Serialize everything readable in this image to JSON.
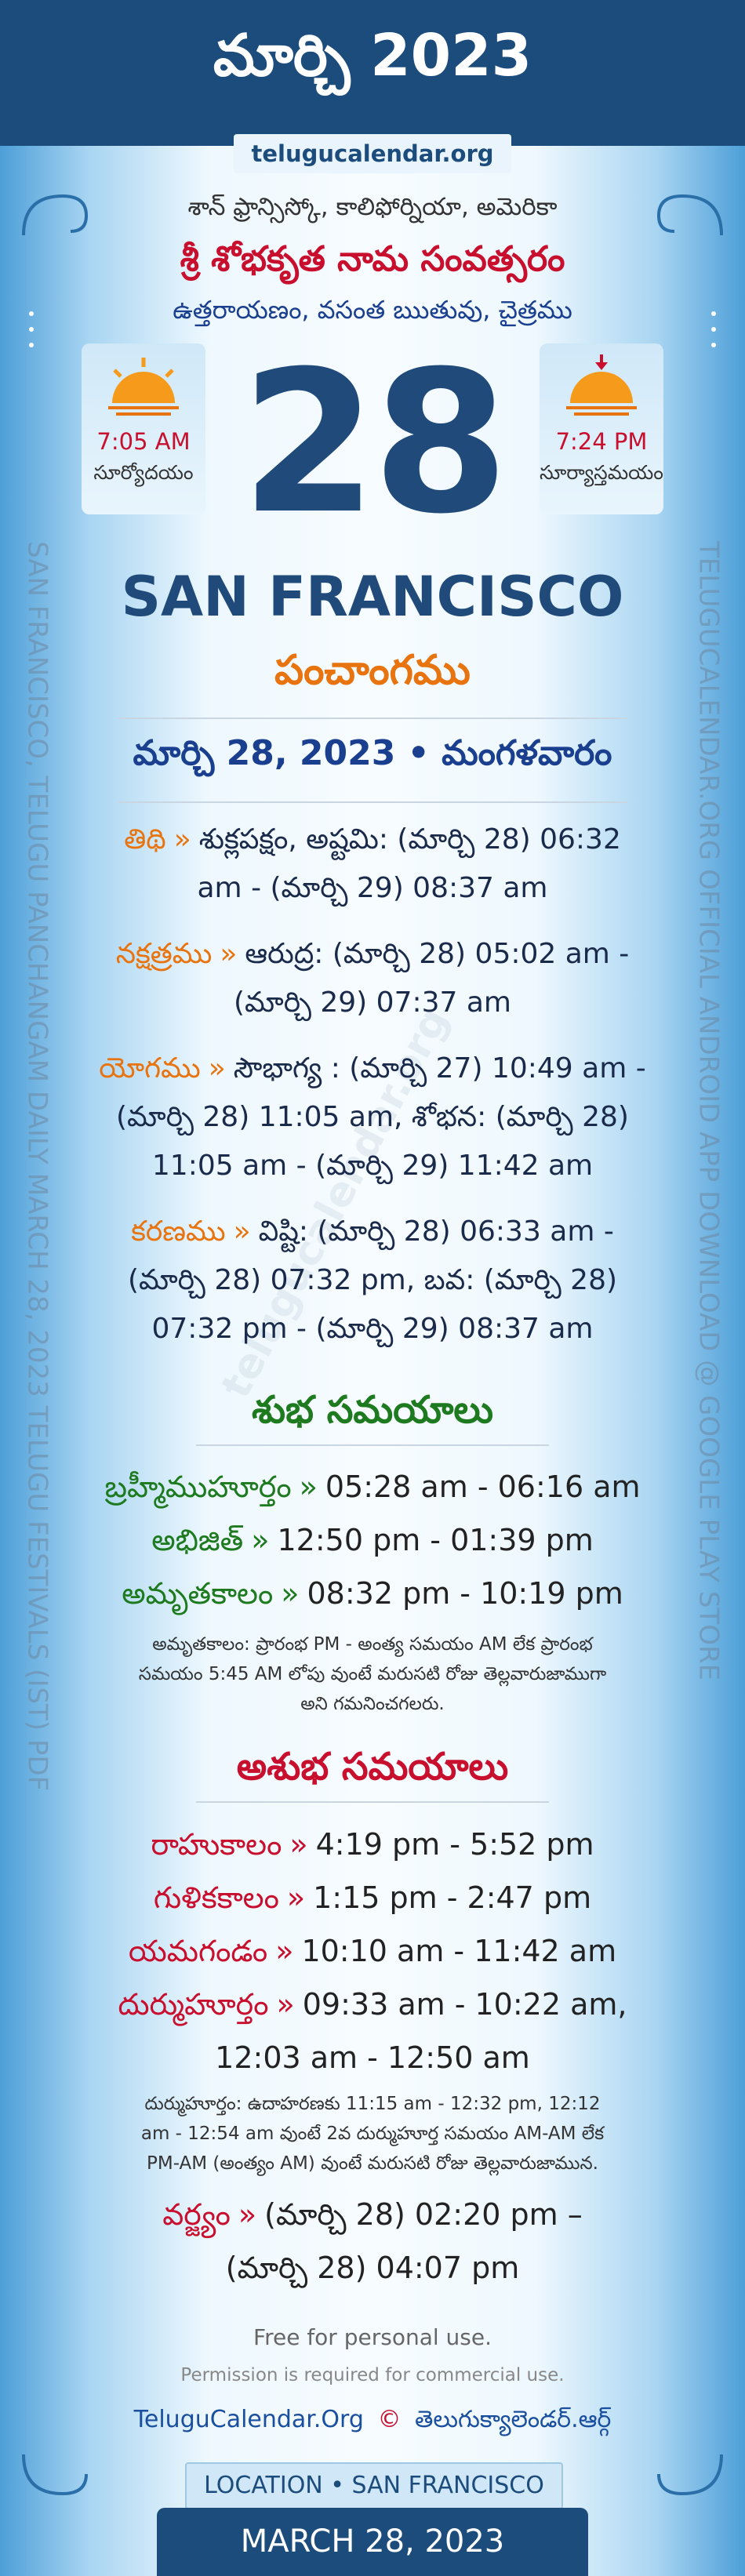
{
  "header": {
    "title": "మార్చి 2023",
    "site": "telugucalendar.org"
  },
  "location_line": "శాన్ ఫ్రాన్సిస్కో, కాలిఫోర్నియా, అమెరికా",
  "samvatsaram": "శ్రీ శోభకృత నామ సంవత్సరం",
  "ayana": "ఉత్తరాయణం, వసంత ఋతువు, చైత్రము",
  "sunrise": {
    "time": "7:05 AM",
    "label": "సూర్యోదయం"
  },
  "sunset": {
    "time": "7:24 PM",
    "label": "సూర్యాస్తమయం"
  },
  "day": 28,
  "city": "SAN FRANCISCO",
  "panchangam_title": "పంచాంగము",
  "date_line": "మార్చి 28, 2023 • మంగళవారం",
  "separator": "»",
  "panchangam": [
    {
      "label": "తిథి",
      "text": "శుక్లపక్షం, అష్టమి: (మార్చి 28) 06:32 am - (మార్చి 29) 08:37 am"
    },
    {
      "label": "నక్షత్రము",
      "text": "ఆరుద్ర: (మార్చి 28) 05:02 am - (మార్చి 29) 07:37 am"
    },
    {
      "label": "యోగము",
      "text": "సౌభాగ్య : (మార్చి 27) 10:49 am - (మార్చి 28) 11:05 am, శోభన: (మార్చి 28) 11:05 am - (మార్చి 29) 11:42 am"
    },
    {
      "label": "కరణము",
      "text": "విష్టి: (మార్చి 28) 06:33 am - (మార్చి 28) 07:32 pm, బవ: (మార్చి 28) 07:32 pm - (మార్చి 29) 08:37 am"
    }
  ],
  "good_times": {
    "title": "శుభ సమయాలు",
    "items": [
      {
        "label": "బ్రహ్మీముహూర్తం",
        "time": "05:28 am - 06:16 am"
      },
      {
        "label": "అభిజిత్",
        "time": "12:50 pm - 01:39 pm"
      },
      {
        "label": "అమృతకాలం",
        "time": "08:32 pm - 10:19 pm"
      }
    ],
    "note": "అమృతకాలం: ప్రారంభ PM - అంత్య సమయం AM లేక ప్రారంభ సమయం 5:45 AM లోపు వుంటే మరుసటి రోజు తెల్లవారుజాముగా అని గమనించగలరు."
  },
  "bad_times": {
    "title": "అశుభ సమయాలు",
    "items": [
      {
        "label": "రాహుకాలం",
        "time": "4:19 pm - 5:52 pm"
      },
      {
        "label": "గుళికకాలం",
        "time": "1:15 pm - 2:47 pm"
      },
      {
        "label": "యమగండం",
        "time": "10:10 am - 11:42 am"
      },
      {
        "label": "దుర్ముహూర్తం",
        "time": "09:33 am - 10:22 am, 12:03 am - 12:50 am"
      }
    ],
    "note": "దుర్ముహూర్తం: ఉదాహరణకు 11:15 am - 12:32 pm, 12:12 am - 12:54 am వుంటే 2వ దుర్ముహూర్త సమయం AM-AM లేక PM-AM (అంత్యం AM) వుంటే మరుసటి రోజు తెల్లవారుజామున.",
    "varjyam": {
      "label": "వర్జ్యం",
      "time": "(మార్చి 28) 02:20 pm – (మార్చి 28) 04:07 pm"
    }
  },
  "footer": {
    "free": "Free for personal use.",
    "permission": "Permission is required for commercial use.",
    "site": "TeluguCalendar.Org",
    "copyright": "©",
    "site_te": "తెలుగుక్యాలెండర్.ఆర్గ్",
    "location": "LOCATION • SAN FRANCISCO",
    "date": "MARCH 28, 2023"
  },
  "side_text": {
    "left": "SAN FRANCISCO, TELUGU PANCHANGAM DAILY MARCH 28, 2023 TELUGU FESTIVALS (IST) PDF",
    "right": "TELUGUCALENDAR.ORG OFFICIAL ANDROID APP DOWNLOAD @ GOOGLE PLAY STORE"
  }
}
